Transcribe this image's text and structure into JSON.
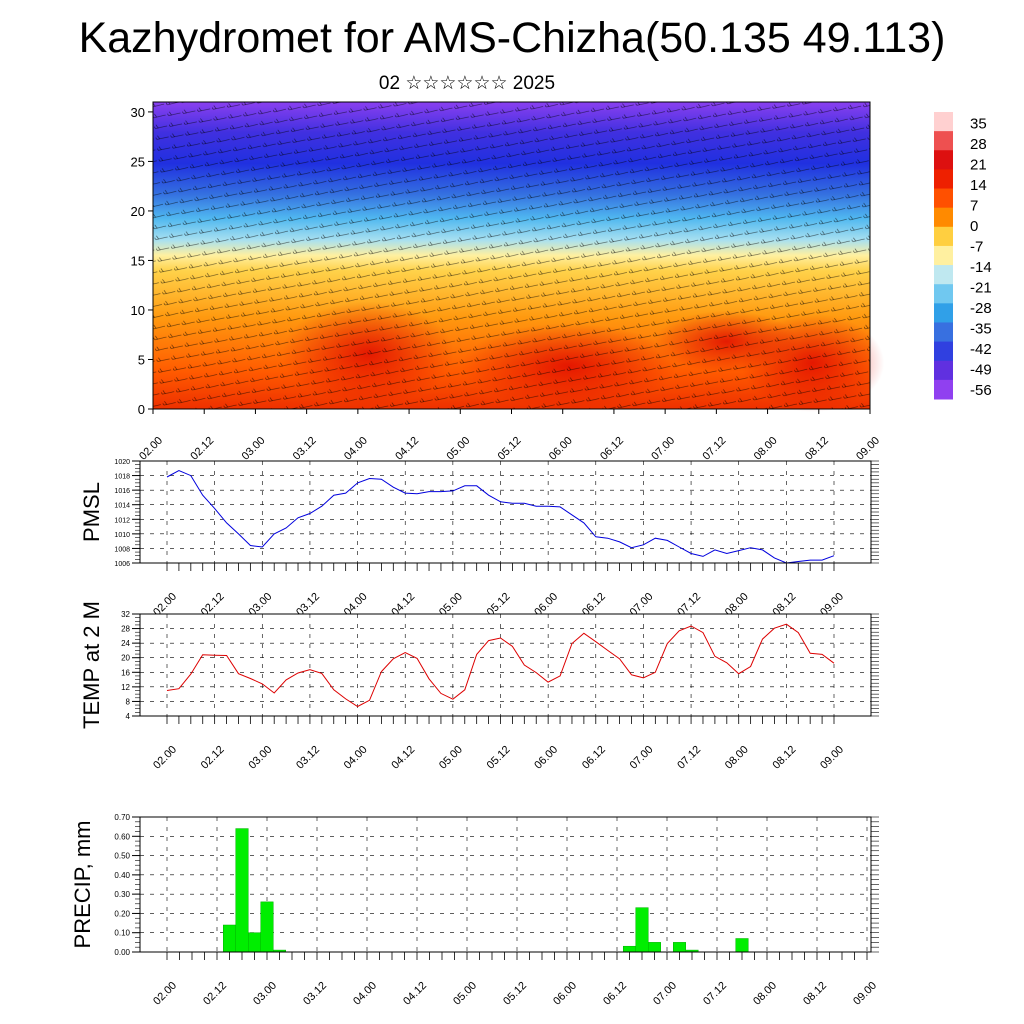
{
  "title": "Kazhydromet for AMS-Chizha(50.135 49.113)",
  "subtitle": "02 ☆☆☆☆☆☆ 2025",
  "colors": {
    "pmsl_line": "#0000dd",
    "temp_line": "#dd0000",
    "precip_bar": "#00ee00"
  },
  "chart_data": [
    {
      "type": "heatmap",
      "title": "",
      "x_tick_labels": [
        "02.00",
        "02.12",
        "03.00",
        "03.12",
        "04.00",
        "04.12",
        "05.00",
        "05.12",
        "06.00",
        "06.12",
        "07.00",
        "07.12",
        "08.00",
        "08.12",
        "09.00"
      ],
      "y_ticks": [
        0,
        5,
        10,
        15,
        20,
        25,
        30
      ],
      "ylim": [
        0,
        31
      ],
      "colorbar": {
        "labels": [
          "35",
          "28",
          "21",
          "14",
          "7",
          "0",
          "-7",
          "-14",
          "-21",
          "-28",
          "-35",
          "-42",
          "-49",
          "-56"
        ],
        "colors": [
          "#ffd0d0",
          "#ee5050",
          "#dd1010",
          "#ee2000",
          "#ff5000",
          "#ff8a00",
          "#ffcf40",
          "#fff0a0",
          "#bfe8f0",
          "#70c8f0",
          "#30a0e8",
          "#3870e0",
          "#3040e0",
          "#6030e0",
          "#9040f0"
        ]
      },
      "overlay": "wind barbs"
    },
    {
      "type": "line",
      "ylabel": "PMSL",
      "ylim": [
        1006,
        1020
      ],
      "y_ticks": [
        1006,
        1008,
        1010,
        1012,
        1014,
        1016,
        1018,
        1020
      ],
      "x_tick_labels": [
        "02.00",
        "02.12",
        "03.00",
        "03.12",
        "04.00",
        "04.12",
        "05.00",
        "05.12",
        "06.00",
        "06.12",
        "07.00",
        "07.12",
        "08.00",
        "08.12",
        "09.00"
      ],
      "x_hours": [
        0,
        3,
        6,
        9,
        12,
        15,
        18,
        21,
        24,
        27,
        30,
        33,
        36,
        39,
        42,
        45,
        48,
        51,
        54,
        57,
        60,
        63,
        66,
        69,
        72,
        75,
        78,
        81,
        84,
        87,
        90,
        93,
        96,
        99,
        102,
        105,
        108,
        111,
        114,
        117,
        120,
        123,
        126,
        129,
        132,
        135,
        138,
        141,
        144,
        147,
        150,
        153,
        156,
        159,
        162,
        165,
        168
      ],
      "series": [
        {
          "values": [
            1017.8,
            1018.7,
            1018.0,
            1015.3,
            1013.5,
            1011.5,
            1010.0,
            1008.4,
            1008.2,
            1010.0,
            1010.8,
            1012.2,
            1012.8,
            1013.8,
            1015.3,
            1015.6,
            1017.0,
            1017.6,
            1017.5,
            1016.4,
            1015.6,
            1015.5,
            1015.8,
            1015.8,
            1015.9,
            1016.6,
            1016.6,
            1015.3,
            1014.4,
            1014.2,
            1014.2,
            1013.8,
            1013.8,
            1013.7,
            1012.6,
            1011.5,
            1009.6,
            1009.4,
            1008.9,
            1008.1,
            1008.5,
            1009.4,
            1009.1,
            1008.2,
            1007.3,
            1006.9,
            1007.8,
            1007.3,
            1007.7,
            1008.1,
            1007.8,
            1006.7,
            1006.0,
            1006.2,
            1006.4,
            1006.4,
            1007.0
          ]
        }
      ]
    },
    {
      "type": "line",
      "ylabel": "TEMP at 2 M",
      "ylim": [
        4,
        32
      ],
      "y_ticks": [
        4,
        8,
        12,
        16,
        20,
        24,
        28,
        32
      ],
      "x_tick_labels": [
        "02.00",
        "02.12",
        "03.00",
        "03.12",
        "04.00",
        "04.12",
        "05.00",
        "05.12",
        "06.00",
        "06.12",
        "07.00",
        "07.12",
        "08.00",
        "08.12",
        "09.00"
      ],
      "x_hours": [
        0,
        3,
        6,
        9,
        12,
        15,
        18,
        21,
        24,
        27,
        30,
        33,
        36,
        39,
        42,
        45,
        48,
        51,
        54,
        57,
        60,
        63,
        66,
        69,
        72,
        75,
        78,
        81,
        84,
        87,
        90,
        93,
        96,
        99,
        102,
        105,
        108,
        111,
        114,
        117,
        120,
        123,
        126,
        129,
        132,
        135,
        138,
        141,
        144,
        147,
        150,
        153,
        156,
        159,
        162,
        165,
        168
      ],
      "series": [
        {
          "values": [
            11.0,
            11.5,
            15.5,
            20.8,
            20.7,
            20.6,
            15.6,
            14.3,
            12.8,
            10.3,
            13.9,
            15.8,
            16.7,
            15.7,
            11.2,
            8.7,
            6.6,
            8.3,
            16.2,
            19.7,
            21.4,
            19.8,
            14.2,
            10.2,
            8.6,
            11.2,
            20.9,
            24.7,
            25.4,
            23.1,
            18.0,
            15.9,
            13.3,
            15.0,
            23.9,
            26.7,
            24.4,
            22.0,
            19.7,
            15.3,
            14.5,
            16.0,
            23.9,
            27.4,
            28.7,
            26.9,
            20.4,
            18.6,
            15.6,
            17.6,
            25.1,
            28.1,
            29.2,
            26.9,
            21.2,
            20.9,
            18.5
          ]
        }
      ]
    },
    {
      "type": "bar",
      "ylabel": "PRECIP, mm",
      "ylim": [
        0,
        0.7
      ],
      "y_ticks": [
        "0.00",
        "0.10",
        "0.20",
        "0.30",
        "0.40",
        "0.50",
        "0.60",
        "0.70"
      ],
      "x_tick_labels": [
        "02.00",
        "02.12",
        "03.00",
        "03.12",
        "04.00",
        "04.12",
        "05.00",
        "05.12",
        "06.00",
        "06.12",
        "07.00",
        "07.12",
        "08.00",
        "08.12",
        "09.00"
      ],
      "x_hours": [
        15,
        18,
        21,
        24,
        27,
        111,
        114,
        117,
        123,
        126,
        138
      ],
      "values": [
        0.14,
        0.64,
        0.1,
        0.26,
        0.01,
        0.03,
        0.23,
        0.05,
        0.05,
        0.01,
        0.07
      ]
    }
  ]
}
